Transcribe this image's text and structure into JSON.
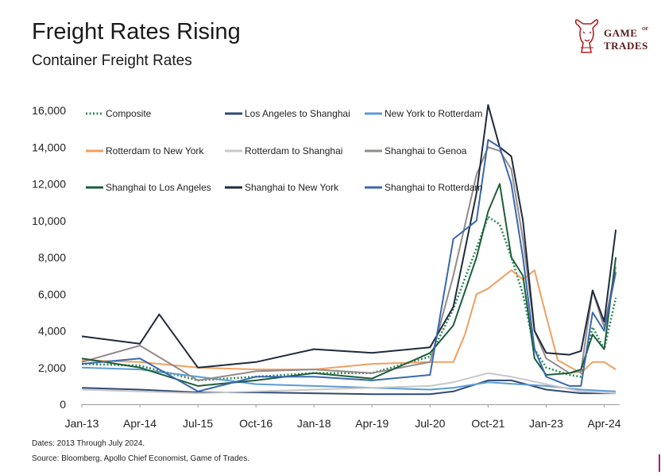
{
  "header": {
    "title": "Freight Rates Rising",
    "subtitle": "Container Freight Rates"
  },
  "brand": {
    "icon": "bull-logo-icon",
    "word1": "GAME",
    "word_of": "OF",
    "word2": "TRADES",
    "color": "#5a1a1a"
  },
  "footnotes": {
    "dates": "Dates: 2013 Through July 2024.",
    "source": "Source: Bloomberg, Apollo Chief Economist, Game of Trades."
  },
  "chart_data": {
    "type": "line",
    "title": "",
    "xlabel": "",
    "ylabel": "",
    "ylim": [
      0,
      16000
    ],
    "yticks": [
      "0",
      "2,000",
      "4,000",
      "6,000",
      "8,000",
      "10,000",
      "12,000",
      "14,000",
      "16,000"
    ],
    "xticks": [
      "Jan-13",
      "Apr-14",
      "Jul-15",
      "Oct-16",
      "Jan-18",
      "Apr-19",
      "Jul-20",
      "Oct-21",
      "Jan-23",
      "Apr-24"
    ],
    "grid": false,
    "legend_placement": "top-left",
    "series": [
      {
        "name": "Composite",
        "color": "#2e8b57",
        "style": "dotted",
        "points": [
          [
            "Jan-13",
            2200
          ],
          [
            "Apr-14",
            2100
          ],
          [
            "Jul-15",
            1300
          ],
          [
            "Oct-16",
            1500
          ],
          [
            "Jan-18",
            1700
          ],
          [
            "Apr-19",
            1700
          ],
          [
            "Jul-20",
            2600
          ],
          [
            "Jan-21",
            5200
          ],
          [
            "Jul-21",
            8500
          ],
          [
            "Oct-21",
            10200
          ],
          [
            "Jan-22",
            9800
          ],
          [
            "Apr-22",
            8000
          ],
          [
            "Jul-22",
            6000
          ],
          [
            "Oct-22",
            3000
          ],
          [
            "Jan-23",
            2000
          ],
          [
            "Jul-23",
            1600
          ],
          [
            "Oct-23",
            1500
          ],
          [
            "Jan-24",
            4200
          ],
          [
            "Apr-24",
            3000
          ],
          [
            "Jul-24",
            5800
          ]
        ]
      },
      {
        "name": "Los Angeles to Shanghai",
        "color": "#2f4a73",
        "style": "solid",
        "points": [
          [
            "Jan-13",
            900
          ],
          [
            "Apr-14",
            800
          ],
          [
            "Jul-15",
            650
          ],
          [
            "Oct-16",
            650
          ],
          [
            "Jan-18",
            600
          ],
          [
            "Apr-19",
            550
          ],
          [
            "Jul-20",
            550
          ],
          [
            "Jan-21",
            700
          ],
          [
            "Oct-21",
            1300
          ],
          [
            "Apr-22",
            1300
          ],
          [
            "Jan-23",
            800
          ],
          [
            "Oct-23",
            600
          ],
          [
            "Jul-24",
            600
          ]
        ]
      },
      {
        "name": "New York to Rotterdam",
        "color": "#5b9bd5",
        "style": "solid",
        "points": [
          [
            "Jan-13",
            2000
          ],
          [
            "Apr-14",
            1900
          ],
          [
            "Jul-15",
            1500
          ],
          [
            "Oct-16",
            1100
          ],
          [
            "Jan-18",
            1000
          ],
          [
            "Apr-19",
            900
          ],
          [
            "Jul-20",
            800
          ],
          [
            "Jan-21",
            900
          ],
          [
            "Oct-21",
            1200
          ],
          [
            "Jan-23",
            1000
          ],
          [
            "Oct-23",
            800
          ],
          [
            "Jul-24",
            700
          ]
        ]
      },
      {
        "name": "Rotterdam to New York",
        "color": "#f0a060",
        "style": "solid",
        "points": [
          [
            "Jan-13",
            2400
          ],
          [
            "Apr-14",
            2300
          ],
          [
            "Jul-15",
            2000
          ],
          [
            "Oct-16",
            1900
          ],
          [
            "Jan-18",
            1900
          ],
          [
            "Apr-19",
            2200
          ],
          [
            "Jul-20",
            2300
          ],
          [
            "Jan-21",
            2300
          ],
          [
            "Apr-21",
            3800
          ],
          [
            "Jul-21",
            6000
          ],
          [
            "Oct-21",
            6300
          ],
          [
            "Apr-22",
            7300
          ],
          [
            "Jul-22",
            6800
          ],
          [
            "Oct-22",
            7300
          ],
          [
            "Jan-23",
            4800
          ],
          [
            "Apr-23",
            2400
          ],
          [
            "Oct-23",
            1700
          ],
          [
            "Jan-24",
            2300
          ],
          [
            "Apr-24",
            2300
          ],
          [
            "Jul-24",
            1900
          ]
        ]
      },
      {
        "name": "Rotterdam to Shanghai",
        "color": "#c8c8c8",
        "style": "solid",
        "points": [
          [
            "Jan-13",
            800
          ],
          [
            "Apr-14",
            700
          ],
          [
            "Jul-15",
            600
          ],
          [
            "Oct-16",
            700
          ],
          [
            "Jan-18",
            800
          ],
          [
            "Apr-19",
            900
          ],
          [
            "Jul-20",
            1000
          ],
          [
            "Jan-21",
            1200
          ],
          [
            "Oct-21",
            1700
          ],
          [
            "Apr-22",
            1500
          ],
          [
            "Jan-23",
            1100
          ],
          [
            "Oct-23",
            700
          ],
          [
            "Jul-24",
            600
          ]
        ]
      },
      {
        "name": "Shanghai to Genoa",
        "color": "#948a8a",
        "style": "solid",
        "points": [
          [
            "Jan-13",
            2300
          ],
          [
            "Apr-14",
            3200
          ],
          [
            "Jul-15",
            1300
          ],
          [
            "Oct-16",
            1800
          ],
          [
            "Jan-18",
            1900
          ],
          [
            "Apr-19",
            1700
          ],
          [
            "Jul-20",
            2300
          ],
          [
            "Jan-21",
            7000
          ],
          [
            "Jul-21",
            12500
          ],
          [
            "Oct-21",
            14000
          ],
          [
            "Jan-22",
            13800
          ],
          [
            "Apr-22",
            12800
          ],
          [
            "Jul-22",
            9000
          ],
          [
            "Oct-22",
            4000
          ],
          [
            "Jan-23",
            2500
          ],
          [
            "Jul-23",
            1700
          ],
          [
            "Oct-23",
            1800
          ],
          [
            "Jan-24",
            6200
          ],
          [
            "Apr-24",
            4200
          ],
          [
            "Jul-24",
            7500
          ]
        ]
      },
      {
        "name": "Shanghai to Los Angeles",
        "color": "#1e5e3a",
        "style": "solid",
        "points": [
          [
            "Jan-13",
            2500
          ],
          [
            "Apr-14",
            2000
          ],
          [
            "Jul-15",
            1000
          ],
          [
            "Oct-16",
            1300
          ],
          [
            "Jan-18",
            1700
          ],
          [
            "Apr-19",
            1400
          ],
          [
            "Jul-20",
            2800
          ],
          [
            "Jan-21",
            4300
          ],
          [
            "Jul-21",
            8000
          ],
          [
            "Oct-21",
            10500
          ],
          [
            "Jan-22",
            12000
          ],
          [
            "Apr-22",
            8000
          ],
          [
            "Jul-22",
            7000
          ],
          [
            "Oct-22",
            2500
          ],
          [
            "Jan-23",
            1600
          ],
          [
            "Jul-23",
            1700
          ],
          [
            "Oct-23",
            1900
          ],
          [
            "Jan-24",
            3800
          ],
          [
            "Apr-24",
            3000
          ],
          [
            "Jul-24",
            8000
          ]
        ]
      },
      {
        "name": "Shanghai to New York",
        "color": "#1f2a3d",
        "style": "solid",
        "points": [
          [
            "Jan-13",
            3700
          ],
          [
            "Apr-14",
            3300
          ],
          [
            "Sep-14",
            4900
          ],
          [
            "Jul-15",
            2000
          ],
          [
            "Oct-16",
            2300
          ],
          [
            "Jan-18",
            3000
          ],
          [
            "Apr-19",
            2800
          ],
          [
            "Jul-20",
            3100
          ],
          [
            "Jan-21",
            5300
          ],
          [
            "Jul-21",
            11500
          ],
          [
            "Oct-21",
            16300
          ],
          [
            "Jan-22",
            14000
          ],
          [
            "Apr-22",
            13500
          ],
          [
            "Jul-22",
            10000
          ],
          [
            "Oct-22",
            4000
          ],
          [
            "Jan-23",
            2800
          ],
          [
            "Jul-23",
            2700
          ],
          [
            "Oct-23",
            2900
          ],
          [
            "Jan-24",
            6200
          ],
          [
            "Apr-24",
            4500
          ],
          [
            "Jul-24",
            9500
          ]
        ]
      },
      {
        "name": "Shanghai to Rotterdam",
        "color": "#3a68b0",
        "style": "solid",
        "points": [
          [
            "Jan-13",
            2200
          ],
          [
            "Apr-14",
            2500
          ],
          [
            "Jul-15",
            700
          ],
          [
            "Oct-16",
            1500
          ],
          [
            "Jan-18",
            1500
          ],
          [
            "Apr-19",
            1300
          ],
          [
            "Jul-20",
            1600
          ],
          [
            "Jan-21",
            9000
          ],
          [
            "Jul-21",
            10000
          ],
          [
            "Oct-21",
            14400
          ],
          [
            "Jan-22",
            14000
          ],
          [
            "Apr-22",
            12000
          ],
          [
            "Jul-22",
            8000
          ],
          [
            "Oct-22",
            3000
          ],
          [
            "Jan-23",
            1500
          ],
          [
            "Jul-23",
            1000
          ],
          [
            "Oct-23",
            1000
          ],
          [
            "Jan-24",
            5000
          ],
          [
            "Apr-24",
            4000
          ],
          [
            "Jul-24",
            7200
          ]
        ]
      }
    ]
  }
}
